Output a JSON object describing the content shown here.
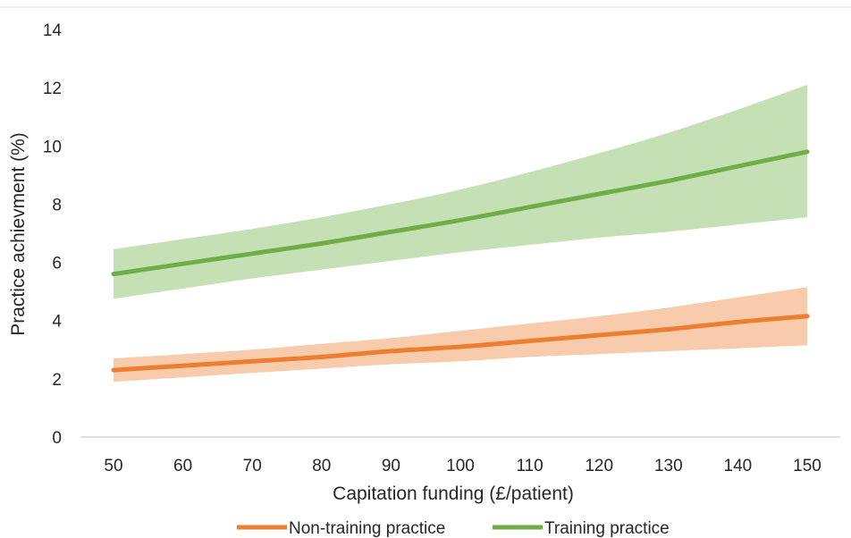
{
  "chart_data": {
    "type": "line",
    "title": "",
    "xlabel": "Capitation funding (£/patient)",
    "ylabel": "Practice achievment  (%)",
    "xlim": [
      50,
      150
    ],
    "ylim": [
      0,
      14
    ],
    "x_ticks": [
      50,
      60,
      70,
      80,
      90,
      100,
      110,
      120,
      130,
      140,
      150
    ],
    "y_ticks": [
      0,
      2,
      4,
      6,
      8,
      10,
      12,
      14
    ],
    "grid": false,
    "legend_position": "bottom",
    "x": [
      50,
      60,
      70,
      80,
      90,
      100,
      110,
      120,
      130,
      140,
      150
    ],
    "series": [
      {
        "name": "Non-training practice",
        "color": "#ED7D31",
        "band_color": "#F8CBAD",
        "values": [
          2.3,
          2.45,
          2.6,
          2.75,
          2.95,
          3.1,
          3.3,
          3.5,
          3.7,
          3.95,
          4.15
        ],
        "lower": [
          1.9,
          2.05,
          2.2,
          2.35,
          2.5,
          2.6,
          2.75,
          2.85,
          2.95,
          3.05,
          3.15
        ],
        "upper": [
          2.7,
          2.85,
          3.0,
          3.2,
          3.4,
          3.65,
          3.9,
          4.15,
          4.45,
          4.8,
          5.15
        ]
      },
      {
        "name": "Training practice",
        "color": "#70AD47",
        "band_color": "#C5E0B4",
        "values": [
          5.6,
          5.95,
          6.3,
          6.65,
          7.05,
          7.45,
          7.9,
          8.35,
          8.8,
          9.3,
          9.8
        ],
        "lower": [
          4.75,
          5.1,
          5.45,
          5.75,
          6.05,
          6.35,
          6.6,
          6.85,
          7.05,
          7.3,
          7.55
        ],
        "upper": [
          6.45,
          6.8,
          7.15,
          7.55,
          8.0,
          8.5,
          9.1,
          9.75,
          10.45,
          11.25,
          12.1
        ]
      }
    ]
  }
}
